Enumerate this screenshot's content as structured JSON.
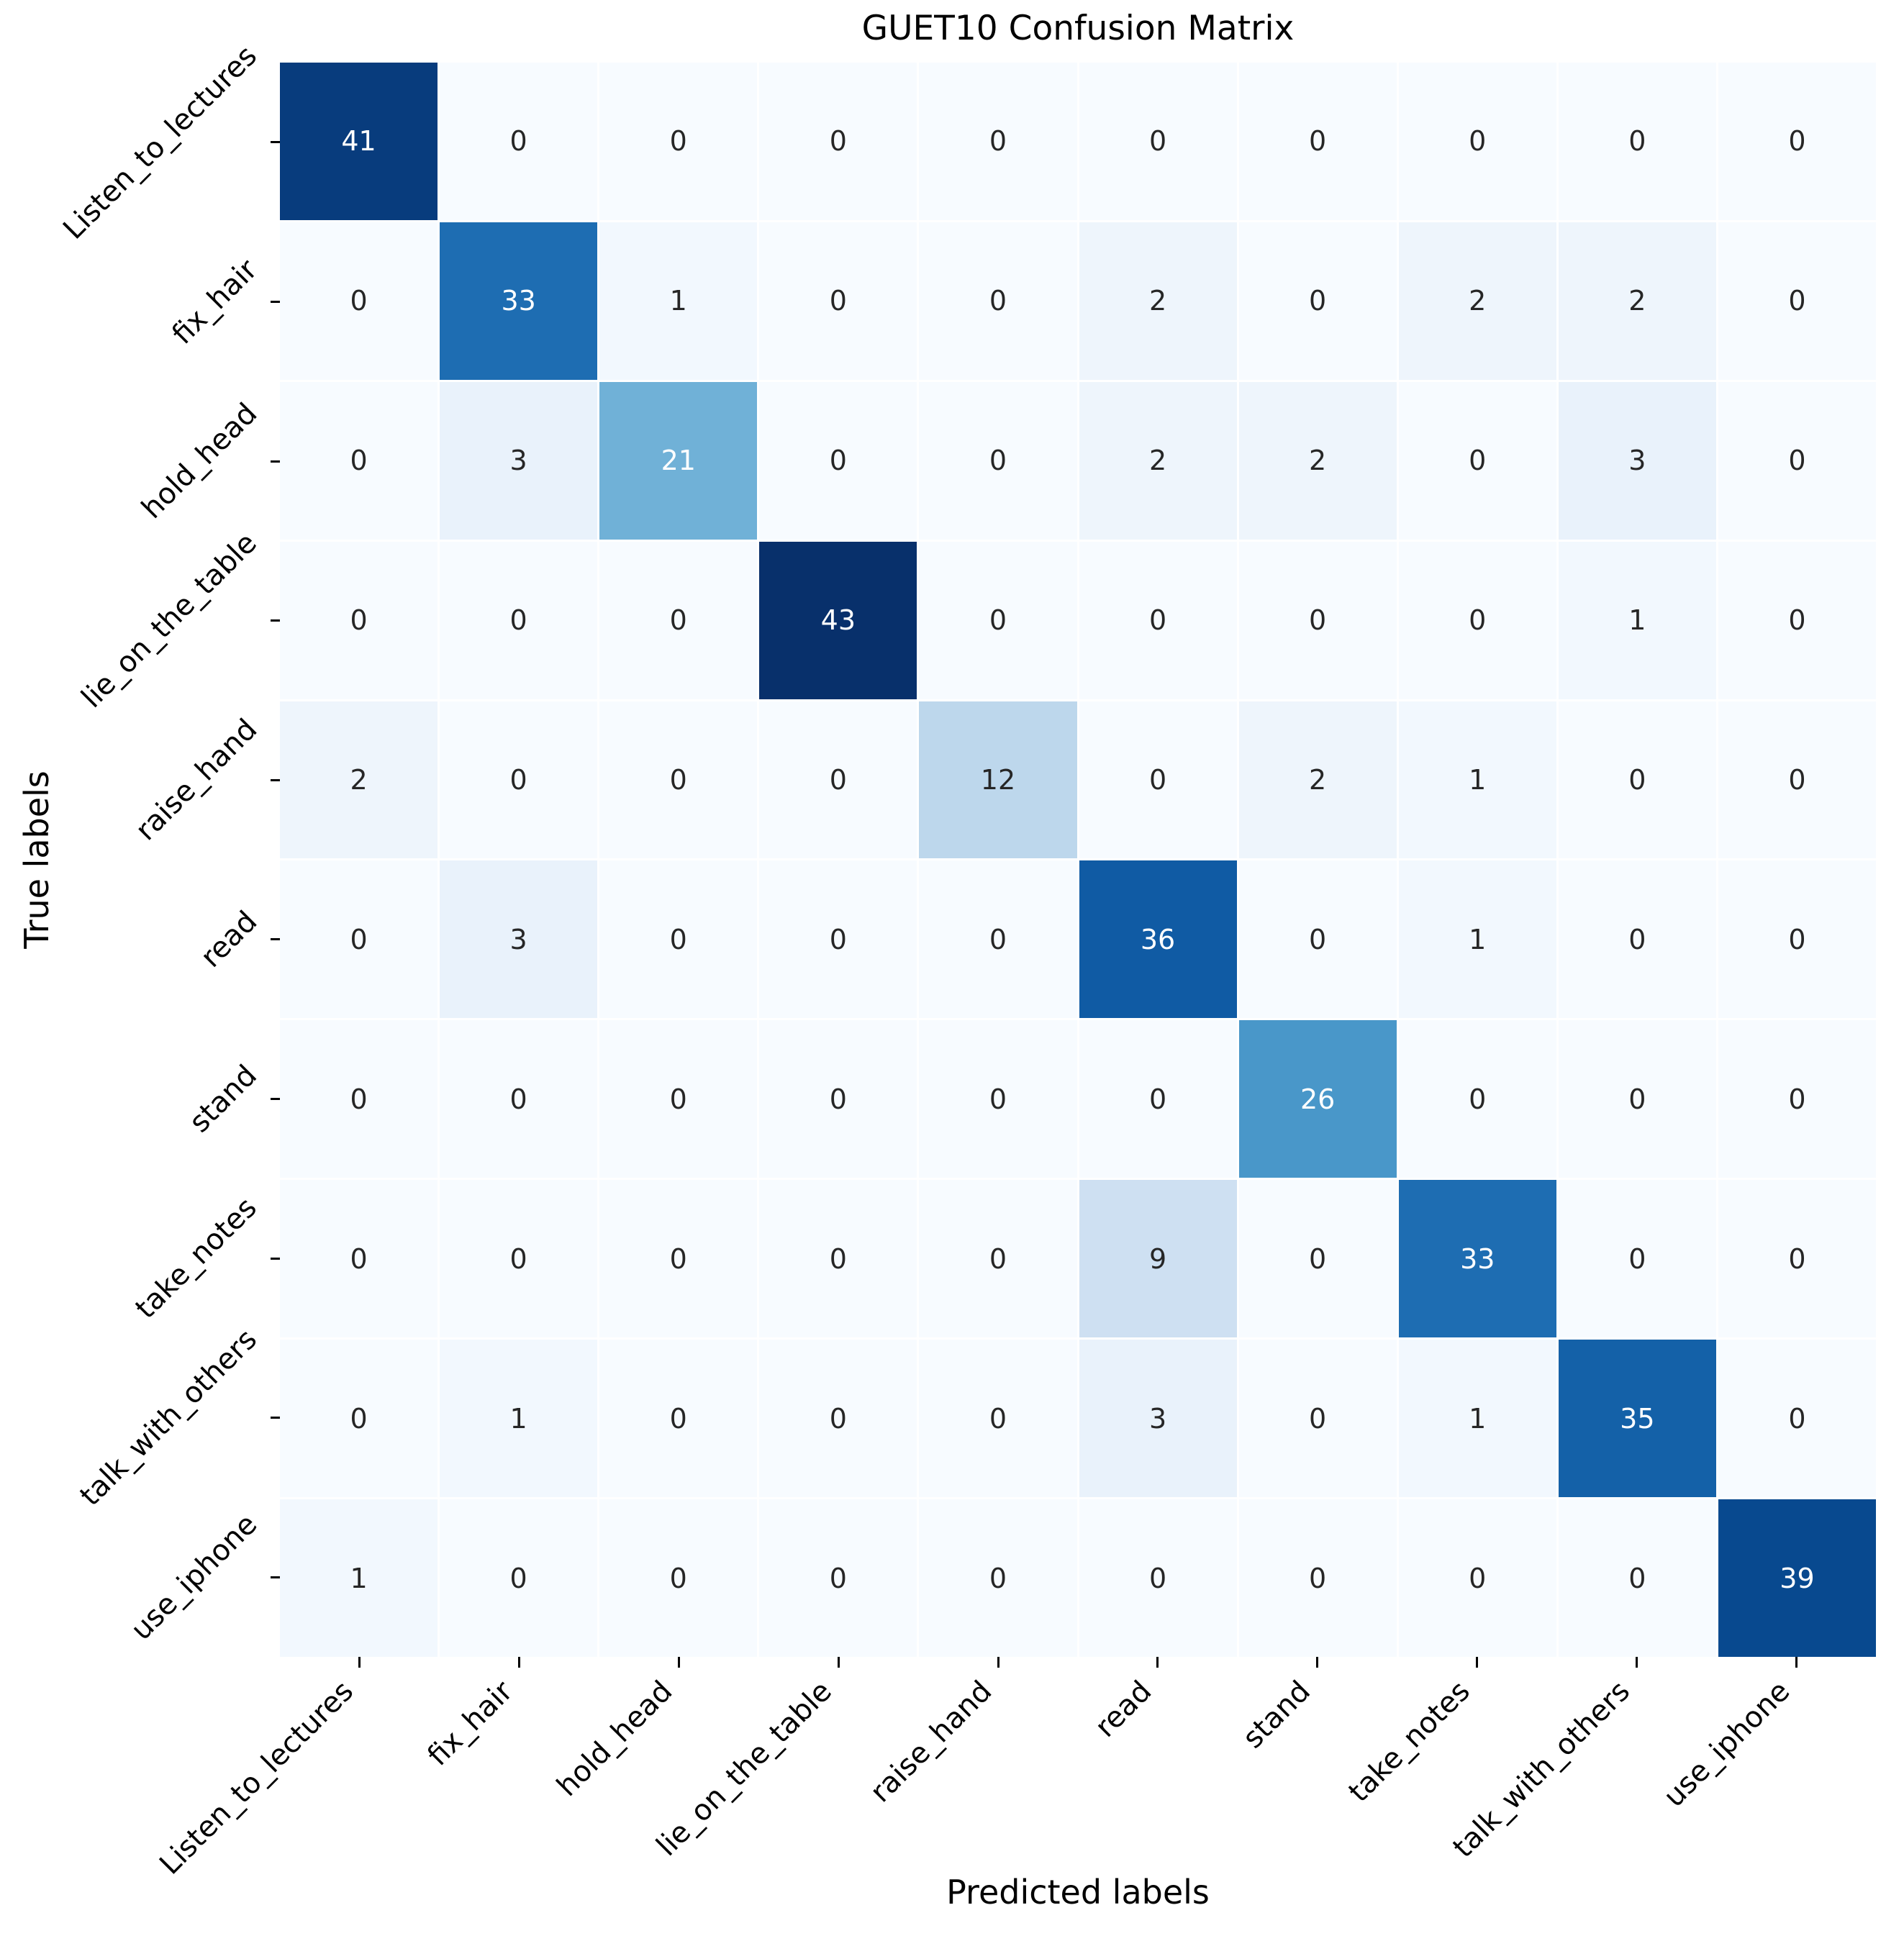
{
  "chart_data": {
    "type": "heatmap",
    "title": "GUET10 Confusion Matrix",
    "xlabel": "Predicted labels",
    "ylabel": "True labels",
    "categories": [
      "Listen_to_lectures",
      "fix_hair",
      "hold_head",
      "lie_on_the_table",
      "raise_hand",
      "read",
      "stand",
      "take_notes",
      "talk_with_others",
      "use_iphone"
    ],
    "matrix": [
      [
        41,
        0,
        0,
        0,
        0,
        0,
        0,
        0,
        0,
        0
      ],
      [
        0,
        33,
        1,
        0,
        0,
        2,
        0,
        2,
        2,
        0
      ],
      [
        0,
        3,
        21,
        0,
        0,
        2,
        2,
        0,
        3,
        0
      ],
      [
        0,
        0,
        0,
        43,
        0,
        0,
        0,
        0,
        1,
        0
      ],
      [
        2,
        0,
        0,
        0,
        12,
        0,
        2,
        1,
        0,
        0
      ],
      [
        0,
        3,
        0,
        0,
        0,
        36,
        0,
        1,
        0,
        0
      ],
      [
        0,
        0,
        0,
        0,
        0,
        0,
        26,
        0,
        0,
        0
      ],
      [
        0,
        0,
        0,
        0,
        0,
        9,
        0,
        33,
        0,
        0
      ],
      [
        0,
        1,
        0,
        0,
        0,
        3,
        0,
        1,
        35,
        0
      ],
      [
        1,
        0,
        0,
        0,
        0,
        0,
        0,
        0,
        0,
        39
      ]
    ],
    "vmin": 0,
    "vmax": 43,
    "colormap": "Blues",
    "annotated": true,
    "legend": "none",
    "grid": "white cell separators",
    "colors": {
      "cmap_low": "#f7fbff",
      "cmap_high": "#08306b",
      "annot_dark": "#262626",
      "annot_light": "#ffffff",
      "axis_text": "#000000"
    }
  }
}
